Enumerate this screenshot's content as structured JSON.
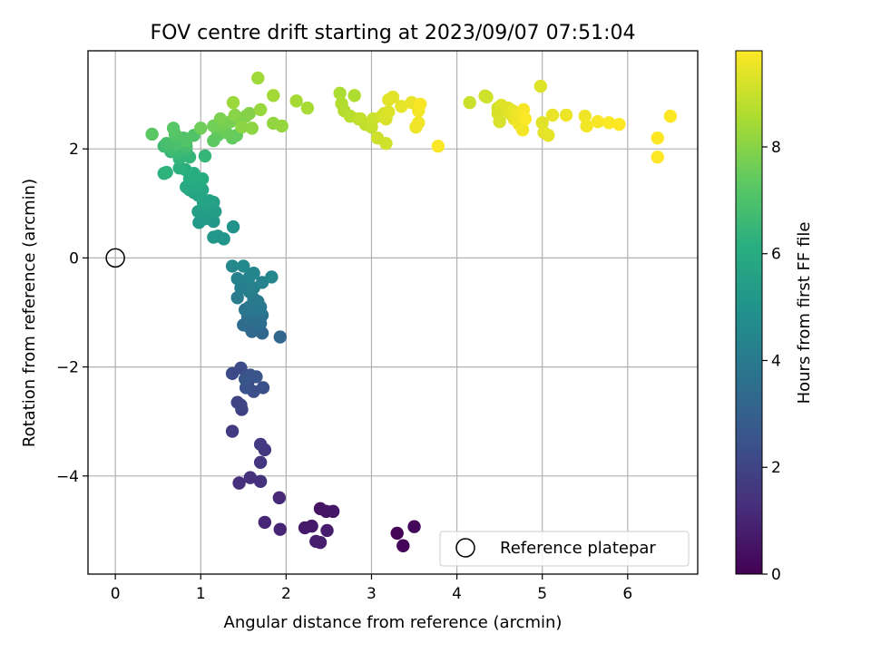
{
  "chart_data": {
    "type": "scatter",
    "title": "FOV centre drift starting at 2023/09/07 07:51:04",
    "xlabel": "Angular distance from reference (arcmin)",
    "ylabel": "Rotation from reference (arcmin)",
    "xlim": [
      -0.32,
      6.82
    ],
    "ylim": [
      -5.8,
      3.8
    ],
    "xticks": [
      0,
      1,
      2,
      3,
      4,
      5,
      6
    ],
    "yticks": [
      -4,
      -2,
      0,
      2
    ],
    "grid": true,
    "colormap": "viridis",
    "colorbar": {
      "label": "Hours from first FF file",
      "min": 0,
      "max": 9.8,
      "ticks": [
        0,
        2,
        4,
        6,
        8
      ]
    },
    "legend": {
      "position": "bottom-right",
      "entries": [
        "Reference platepar"
      ]
    },
    "reference_point": {
      "x": 0,
      "y": 0
    },
    "series": [
      {
        "name": "",
        "points": [
          [
            3.3,
            -5.05,
            0.1
          ],
          [
            3.37,
            -5.28,
            0.15
          ],
          [
            3.5,
            -4.93,
            0.2
          ],
          [
            2.4,
            -4.6,
            0.5
          ],
          [
            2.47,
            -4.65,
            0.55
          ],
          [
            2.55,
            -4.65,
            0.6
          ],
          [
            2.3,
            -4.92,
            0.65
          ],
          [
            2.22,
            -4.95,
            0.7
          ],
          [
            2.48,
            -5.0,
            0.75
          ],
          [
            2.35,
            -5.2,
            0.8
          ],
          [
            2.4,
            -5.22,
            0.85
          ],
          [
            1.93,
            -4.98,
            1.0
          ],
          [
            1.75,
            -4.85,
            1.05
          ],
          [
            1.92,
            -4.4,
            1.1
          ],
          [
            1.45,
            -4.13,
            1.3
          ],
          [
            1.58,
            -4.03,
            1.35
          ],
          [
            1.7,
            -4.1,
            1.4
          ],
          [
            1.7,
            -3.75,
            1.55
          ],
          [
            1.75,
            -3.52,
            1.6
          ],
          [
            1.7,
            -3.42,
            1.65
          ],
          [
            1.37,
            -3.18,
            1.7
          ],
          [
            1.48,
            -2.78,
            1.9
          ],
          [
            1.43,
            -2.65,
            1.95
          ],
          [
            1.47,
            -2.7,
            2.0
          ],
          [
            1.37,
            -2.12,
            2.2
          ],
          [
            1.47,
            -2.02,
            2.25
          ],
          [
            1.55,
            -2.3,
            2.3
          ],
          [
            1.62,
            -2.45,
            2.35
          ],
          [
            1.73,
            -2.38,
            2.4
          ],
          [
            1.53,
            -2.38,
            2.45
          ],
          [
            1.58,
            -2.15,
            2.5
          ],
          [
            1.65,
            -2.18,
            2.55
          ],
          [
            1.52,
            -2.22,
            2.6
          ],
          [
            1.93,
            -1.45,
            3.2
          ],
          [
            1.72,
            -1.38,
            3.25
          ],
          [
            1.6,
            -1.35,
            3.3
          ],
          [
            1.55,
            -1.25,
            3.35
          ],
          [
            1.65,
            -1.25,
            3.4
          ],
          [
            1.5,
            -1.23,
            3.45
          ],
          [
            1.7,
            -1.2,
            3.5
          ],
          [
            1.55,
            -1.08,
            3.55
          ],
          [
            1.62,
            -1.12,
            3.6
          ],
          [
            1.72,
            -1.05,
            3.65
          ],
          [
            1.6,
            -0.98,
            3.7
          ],
          [
            1.67,
            -0.95,
            3.75
          ],
          [
            1.52,
            -0.95,
            3.8
          ],
          [
            1.57,
            -0.9,
            3.85
          ],
          [
            1.7,
            -0.9,
            3.9
          ],
          [
            1.62,
            -0.75,
            3.95
          ],
          [
            1.67,
            -0.8,
            4.0
          ],
          [
            1.43,
            -0.73,
            4.05
          ],
          [
            1.57,
            -0.62,
            4.1
          ],
          [
            1.47,
            -0.55,
            4.15
          ],
          [
            1.52,
            -0.5,
            4.2
          ],
          [
            1.62,
            -0.55,
            4.25
          ],
          [
            1.72,
            -0.45,
            4.3
          ],
          [
            1.43,
            -0.38,
            4.35
          ],
          [
            1.57,
            -0.35,
            4.4
          ],
          [
            1.62,
            -0.28,
            4.45
          ],
          [
            1.83,
            -0.35,
            4.5
          ],
          [
            1.37,
            -0.15,
            4.55
          ],
          [
            1.5,
            -0.15,
            4.6
          ],
          [
            1.38,
            0.57,
            5.0
          ],
          [
            1.27,
            0.35,
            5.05
          ],
          [
            1.15,
            0.38,
            5.1
          ],
          [
            1.2,
            0.4,
            5.15
          ],
          [
            1.15,
            0.67,
            5.2
          ],
          [
            0.98,
            0.65,
            5.25
          ],
          [
            1.05,
            0.72,
            5.3
          ],
          [
            1.17,
            0.85,
            5.4
          ],
          [
            0.97,
            0.85,
            5.45
          ],
          [
            1.07,
            0.88,
            5.5
          ],
          [
            1.15,
            1.02,
            5.55
          ],
          [
            1.1,
            1.05,
            5.6
          ],
          [
            1.03,
            1.02,
            5.65
          ],
          [
            0.97,
            1.15,
            5.7
          ],
          [
            0.92,
            1.2,
            5.75
          ],
          [
            1.02,
            1.25,
            5.8
          ],
          [
            0.87,
            1.25,
            5.85
          ],
          [
            0.83,
            1.3,
            5.9
          ],
          [
            0.97,
            1.35,
            5.95
          ],
          [
            1.02,
            1.45,
            6.0
          ],
          [
            0.87,
            1.45,
            6.05
          ],
          [
            0.92,
            1.55,
            6.1
          ],
          [
            0.82,
            1.62,
            6.15
          ],
          [
            0.75,
            1.65,
            6.2
          ],
          [
            0.57,
            1.55,
            6.25
          ],
          [
            0.6,
            1.57,
            6.3
          ],
          [
            0.75,
            1.82,
            6.35
          ],
          [
            0.87,
            1.85,
            6.4
          ],
          [
            1.05,
            1.87,
            6.45
          ],
          [
            0.65,
            1.95,
            6.5
          ],
          [
            0.73,
            1.93,
            6.55
          ],
          [
            0.83,
            1.98,
            6.6
          ],
          [
            0.57,
            2.05,
            6.65
          ],
          [
            0.67,
            2.0,
            6.7
          ],
          [
            0.7,
            2.05,
            6.75
          ],
          [
            0.83,
            2.05,
            6.8
          ],
          [
            0.6,
            2.1,
            6.85
          ],
          [
            0.73,
            2.1,
            6.9
          ],
          [
            0.72,
            2.18,
            6.95
          ],
          [
            0.8,
            2.2,
            7.0
          ],
          [
            0.92,
            2.25,
            7.05
          ],
          [
            0.83,
            2.15,
            7.1
          ],
          [
            0.7,
            2.27,
            7.15
          ],
          [
            0.68,
            2.38,
            7.2
          ],
          [
            0.43,
            2.27,
            7.25
          ],
          [
            1.15,
            2.15,
            7.3
          ],
          [
            1.2,
            2.25,
            7.35
          ],
          [
            1.37,
            2.2,
            7.4
          ],
          [
            1.42,
            2.25,
            7.45
          ],
          [
            1.3,
            2.3,
            7.5
          ],
          [
            1.25,
            2.35,
            7.55
          ],
          [
            1.0,
            2.38,
            7.6
          ],
          [
            1.15,
            2.42,
            7.65
          ],
          [
            1.25,
            2.45,
            7.7
          ],
          [
            1.35,
            2.5,
            7.75
          ],
          [
            1.23,
            2.55,
            7.8
          ],
          [
            1.47,
            2.55,
            7.85
          ],
          [
            1.53,
            2.6,
            7.9
          ],
          [
            1.57,
            2.65,
            7.95
          ],
          [
            1.4,
            2.62,
            8.0
          ],
          [
            1.48,
            2.4,
            8.05
          ],
          [
            1.6,
            2.38,
            8.1
          ],
          [
            1.85,
            2.47,
            8.15
          ],
          [
            1.95,
            2.42,
            8.2
          ],
          [
            1.7,
            2.72,
            8.25
          ],
          [
            1.38,
            2.85,
            8.3
          ],
          [
            1.67,
            3.3,
            8.35
          ],
          [
            1.85,
            2.98,
            8.4
          ],
          [
            2.12,
            2.88,
            8.45
          ],
          [
            2.25,
            2.75,
            8.5
          ],
          [
            2.63,
            3.02,
            8.55
          ],
          [
            2.8,
            2.98,
            8.6
          ],
          [
            2.65,
            2.83,
            8.65
          ],
          [
            2.68,
            2.7,
            8.7
          ],
          [
            2.75,
            2.6,
            8.75
          ],
          [
            2.85,
            2.55,
            8.8
          ],
          [
            2.93,
            2.45,
            8.85
          ],
          [
            2.87,
            2.55,
            8.9
          ],
          [
            3.0,
            2.4,
            8.95
          ],
          [
            3.02,
            2.55,
            9.0
          ],
          [
            3.07,
            2.2,
            9.05
          ],
          [
            3.17,
            2.1,
            9.1
          ],
          [
            3.12,
            2.6,
            9.15
          ],
          [
            3.15,
            2.65,
            9.2
          ],
          [
            3.17,
            2.55,
            9.25
          ],
          [
            3.2,
            2.68,
            9.3
          ],
          [
            3.2,
            2.9,
            9.35
          ],
          [
            3.25,
            2.95,
            9.4
          ],
          [
            3.35,
            2.78,
            9.45
          ],
          [
            3.47,
            2.85,
            9.5
          ],
          [
            3.52,
            2.4,
            9.55
          ],
          [
            3.55,
            2.48,
            9.6
          ],
          [
            3.55,
            2.7,
            9.65
          ],
          [
            3.57,
            2.82,
            9.7
          ],
          [
            3.78,
            2.05,
            9.75
          ],
          [
            4.15,
            2.85,
            9.0
          ],
          [
            4.33,
            2.97,
            9.05
          ],
          [
            4.35,
            2.95,
            9.1
          ],
          [
            4.48,
            2.75,
            9.15
          ],
          [
            4.48,
            2.65,
            9.2
          ],
          [
            4.5,
            2.5,
            9.25
          ],
          [
            4.52,
            2.8,
            9.3
          ],
          [
            4.6,
            2.75,
            9.35
          ],
          [
            4.62,
            2.65,
            9.4
          ],
          [
            4.65,
            2.7,
            9.45
          ],
          [
            4.67,
            2.55,
            9.5
          ],
          [
            4.7,
            2.62,
            9.55
          ],
          [
            4.73,
            2.45,
            9.6
          ],
          [
            4.77,
            2.35,
            9.65
          ],
          [
            4.78,
            2.72,
            9.7
          ],
          [
            4.8,
            2.55,
            9.75
          ],
          [
            4.98,
            3.15,
            9.3
          ],
          [
            5.0,
            2.48,
            9.35
          ],
          [
            5.02,
            2.3,
            9.4
          ],
          [
            5.07,
            2.25,
            9.45
          ],
          [
            5.12,
            2.62,
            9.5
          ],
          [
            5.28,
            2.62,
            9.55
          ],
          [
            5.5,
            2.6,
            9.6
          ],
          [
            5.52,
            2.42,
            9.65
          ],
          [
            5.65,
            2.5,
            9.7
          ],
          [
            5.78,
            2.48,
            9.75
          ],
          [
            5.9,
            2.45,
            9.8
          ],
          [
            6.35,
            2.2,
            9.85
          ],
          [
            6.35,
            1.85,
            9.9
          ],
          [
            6.5,
            2.6,
            9.95
          ]
        ]
      }
    ]
  }
}
